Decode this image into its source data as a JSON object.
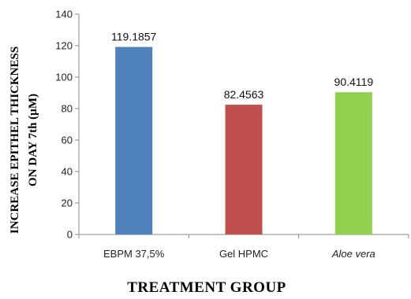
{
  "chart_data": {
    "type": "bar",
    "categories": [
      "EBPM 37,5%",
      "Gel HPMC",
      "Aloe vera"
    ],
    "values": [
      119.1857,
      82.4563,
      90.4119
    ],
    "value_labels": [
      "119.1857",
      "82.4563",
      "90.4119"
    ],
    "colors": [
      "#4f81bd",
      "#c0504d",
      "#92d050"
    ],
    "ylabel_lines": [
      "INCREASE EPITHEL THICKNESS",
      "ON DAY 7th (µM)"
    ],
    "xlabel": "TREATMENT GROUP",
    "ylim": [
      0,
      140
    ],
    "yticks": [
      0,
      20,
      40,
      60,
      80,
      100,
      120,
      140
    ],
    "grid": false,
    "legend": "none"
  }
}
